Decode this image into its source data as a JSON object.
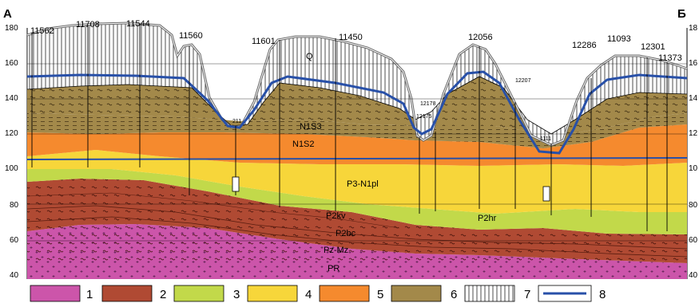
{
  "section": {
    "corner_left": "А",
    "corner_right": "Б",
    "y_ticks": [
      180,
      160,
      140,
      120,
      100,
      80,
      60,
      40
    ],
    "y_ticks_right": [
      "18",
      "16",
      "14",
      "12",
      "10",
      "80",
      "60",
      "40"
    ],
    "wells": [
      "11562",
      "11708",
      "11544",
      "11560",
      "11601",
      "11450",
      "12056",
      "12286",
      "11093",
      "12301",
      "11373"
    ],
    "wells_small": [
      "211",
      "12178",
      "12175",
      "12207",
      "1111"
    ],
    "units": {
      "q": "Q",
      "n1s3": "N1S3",
      "n1s2": "N1S2",
      "p3n1pl": "P3-N1pl",
      "p2hr": "P2hr",
      "p2kv": "P2kv",
      "p2bc": "P2bc",
      "pzmz": "Pz-Mz",
      "pr": "PR"
    }
  },
  "legend": {
    "items": [
      {
        "num": "1",
        "color": "#cc55aa"
      },
      {
        "num": "2",
        "color": "#b04a33"
      },
      {
        "num": "3",
        "color": "#c2d94a"
      },
      {
        "num": "4",
        "color": "#f7d63a"
      },
      {
        "num": "5",
        "color": "#f58a2e"
      },
      {
        "num": "6",
        "color": "#a3894a"
      },
      {
        "num": "7",
        "color": "#ffffff"
      },
      {
        "num": "8",
        "color": "#2850a8"
      }
    ]
  }
}
